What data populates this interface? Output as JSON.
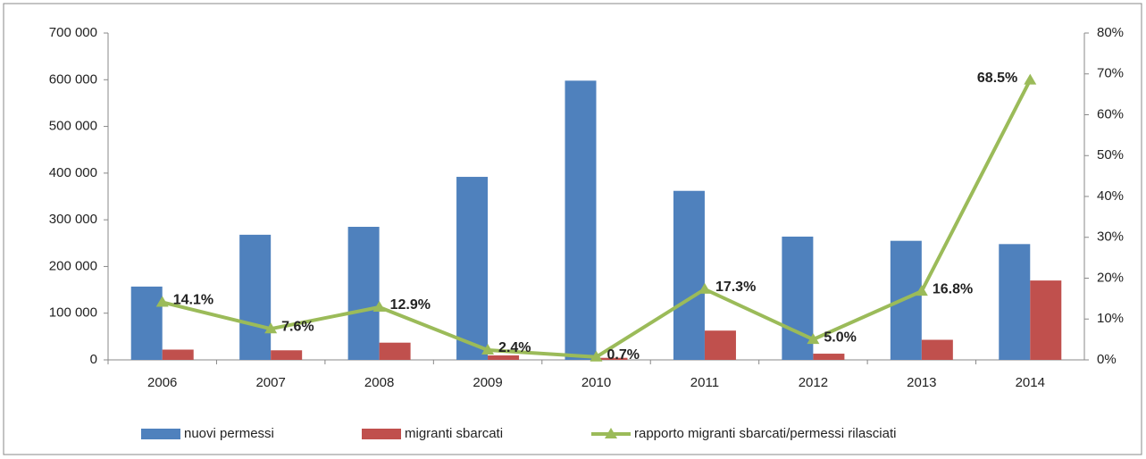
{
  "chart_data": {
    "type": "bar",
    "categories": [
      "2006",
      "2007",
      "2008",
      "2009",
      "2010",
      "2011",
      "2012",
      "2013",
      "2014"
    ],
    "series": [
      {
        "name": "nuovi permessi",
        "color": "#4f81bd",
        "type": "bar",
        "values": [
          157000,
          268000,
          285000,
          392000,
          598000,
          362000,
          264000,
          255000,
          248000
        ]
      },
      {
        "name": "migranti sbarcati",
        "color": "#c0504d",
        "type": "bar",
        "values": [
          22000,
          20500,
          36900,
          9600,
          4400,
          62700,
          13300,
          43000,
          170000
        ]
      },
      {
        "name": "rapporto migranti sbarcati/permessi rilasciati",
        "color": "#9bbb59",
        "type": "line",
        "axis": "y2",
        "values": [
          14.1,
          7.6,
          12.9,
          2.4,
          0.7,
          17.3,
          5.0,
          16.8,
          68.5
        ],
        "value_labels": [
          "14.1%",
          "7.6%",
          "12.9%",
          "2.4%",
          "0.7%",
          "17.3%",
          "5.0%",
          "16.8%",
          "68.5%"
        ]
      }
    ],
    "ylim": [
      0,
      700000
    ],
    "yticks": [
      0,
      {
        "value": 100000,
        "label": "100 000"
      },
      {
        "value": 200000,
        "label": "200 000"
      },
      {
        "value": 300000,
        "label": "300 000"
      },
      {
        "value": 400000,
        "label": "400 000"
      },
      {
        "value": 500000,
        "label": "500 000"
      },
      {
        "value": 600000,
        "label": "600 000"
      },
      {
        "value": 700000,
        "label": "700 000"
      }
    ],
    "y2lim": [
      0,
      80
    ],
    "y2ticks": [
      {
        "value": 0,
        "label": "0%"
      },
      {
        "value": 10,
        "label": "10%"
      },
      {
        "value": 20,
        "label": "20%"
      },
      {
        "value": 30,
        "label": "30%"
      },
      {
        "value": 40,
        "label": "40%"
      },
      {
        "value": 50,
        "label": "50%"
      },
      {
        "value": 60,
        "label": "60%"
      },
      {
        "value": 70,
        "label": "70%"
      },
      {
        "value": 80,
        "label": "80%"
      }
    ],
    "legend": "bottom",
    "grid": false
  }
}
